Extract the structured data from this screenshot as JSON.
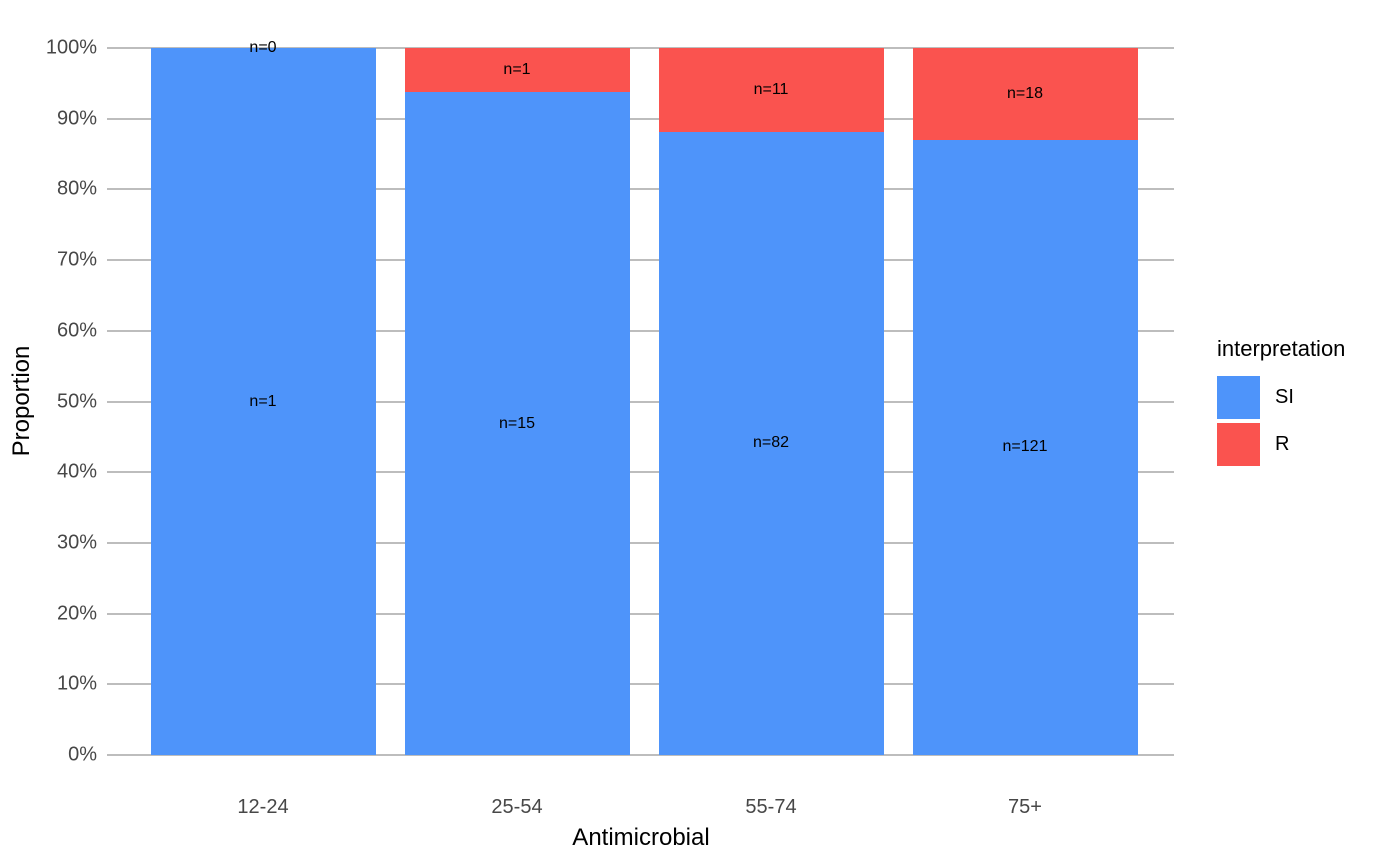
{
  "chart_data": {
    "type": "bar",
    "subtype": "stacked-proportion",
    "orientation": "vertical",
    "title": "",
    "xlabel": "Antimicrobial",
    "ylabel": "Proportion",
    "categories": [
      "12-24",
      "25-54",
      "55-74",
      "75+"
    ],
    "series": [
      {
        "name": "SI",
        "color": "#4E94FA",
        "counts": [
          1,
          15,
          82,
          121
        ],
        "labels": [
          "n=1",
          "n=15",
          "n=82",
          "n=121"
        ]
      },
      {
        "name": "R",
        "color": "#FA534F",
        "counts": [
          0,
          1,
          11,
          18
        ],
        "labels": [
          "n=0",
          "n=1",
          "n=11",
          "n=18"
        ]
      }
    ],
    "proportions_si_pct": [
      100.0,
      93.75,
      88.17,
      87.05
    ],
    "y_axis": {
      "tick_values": [
        0,
        10,
        20,
        30,
        40,
        50,
        60,
        70,
        80,
        90,
        100
      ],
      "tick_labels": [
        "0%",
        "10%",
        "20%",
        "30%",
        "40%",
        "50%",
        "60%",
        "70%",
        "80%",
        "90%",
        "100%"
      ],
      "range_pct": [
        0,
        100
      ]
    },
    "grid": true,
    "legend": {
      "title": "interpretation",
      "position": "right",
      "items": [
        {
          "label": "SI",
          "color": "#4E94FA"
        },
        {
          "label": "R",
          "color": "#FA534F"
        }
      ]
    }
  },
  "styles": {
    "background": "#ffffff",
    "grid_color": "#bdbdbd",
    "tick_text_color": "#474747",
    "axis_title_color": "#000000",
    "bar_label_color": "#000000",
    "legend_text_color": "#000000"
  }
}
